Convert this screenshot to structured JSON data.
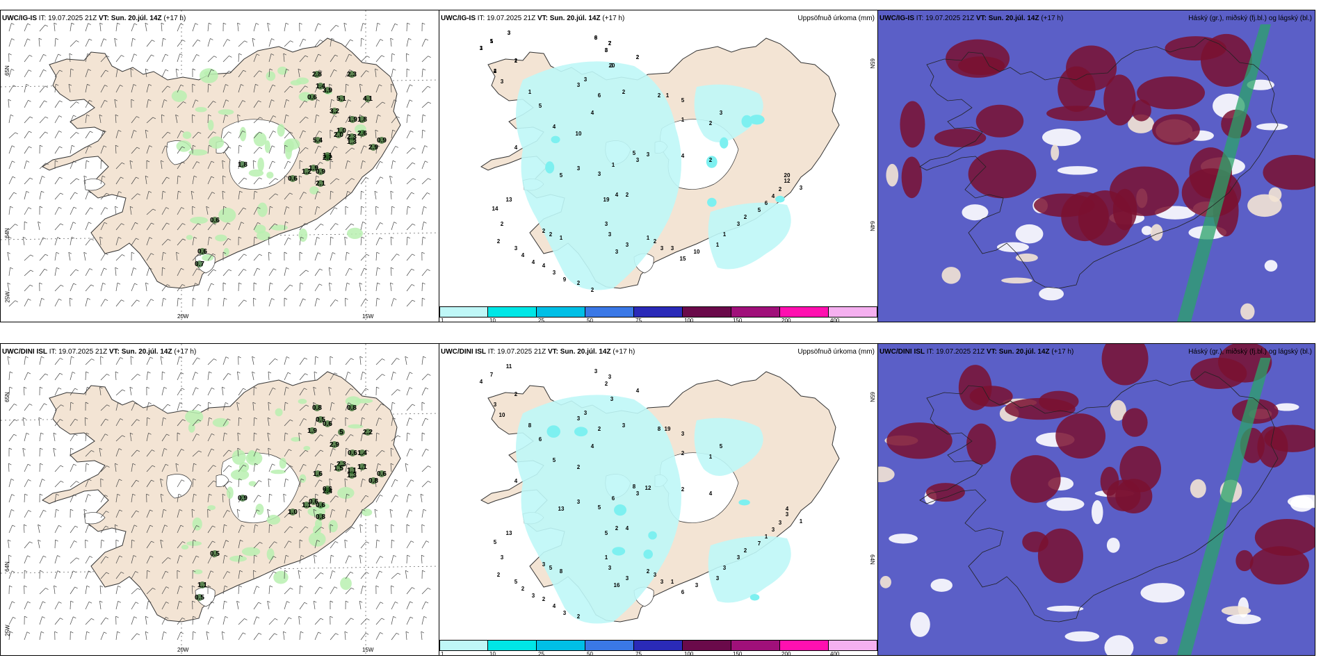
{
  "colors": {
    "land": "#f3e4d4",
    "sea": "#ffffff",
    "green_light": "#b8f0b0",
    "green_dark": "#1d5b1a",
    "cyan_light": "#bff7f7",
    "cyan": "#7df0f0",
    "cloud_low": "#5b5fc7",
    "cloud_high": "#7a1030",
    "cloud_mid_white": "#ffffff",
    "cloud_green": "#2ba36a"
  },
  "panels": {
    "top_left": {
      "model": "UWC/IG-IS",
      "it_label": "IT:",
      "it_value": "19.07.2025 21Z",
      "vt_label": "VT:",
      "vt_value": "Sun. 20.júl. 14Z",
      "lead": "(+17 h)",
      "right_title": "",
      "lat_labels": [
        "65N",
        "64N",
        "25W"
      ],
      "lon_labels": [
        "20W",
        "15W"
      ],
      "values": [
        "2.8",
        "2.3",
        "1.4",
        "3.9",
        "0.6",
        "5.1",
        "4.1",
        "3.2",
        "1.9",
        "1.8",
        "1.0",
        "2.6",
        "5.4",
        "2.0",
        "2.3",
        "1.3",
        "0.9",
        "2.9",
        "1.1",
        "2.2",
        "1.8",
        "1.9",
        "0.9",
        "1.2",
        "0.6",
        "2.1",
        "0.6",
        "0.6",
        "0.7"
      ]
    },
    "top_mid": {
      "model": "UWC/IG-IS",
      "it_label": "IT:",
      "it_value": "19.07.2025 21Z",
      "vt_label": "VT:",
      "vt_value": "Sun. 20.júl. 14Z",
      "lead": "(+17 h)",
      "right_title": "Uppsöfnuð úrkoma (mm)",
      "lat_labels": [
        "65N",
        "64N"
      ],
      "values": [
        "3",
        "1",
        "1",
        "8",
        "7",
        "8",
        "2",
        "1",
        "20",
        "4",
        "3",
        "3",
        "3",
        "1",
        "2",
        "6",
        "2",
        "1",
        "5",
        "3",
        "5",
        "4",
        "4",
        "1",
        "2",
        "10",
        "3",
        "5",
        "3",
        "4",
        "1",
        "4",
        "2",
        "3",
        "3",
        "5",
        "20",
        "12",
        "3",
        "4",
        "2",
        "19",
        "13",
        "14",
        "2",
        "3",
        "3",
        "3",
        "3",
        "2",
        "2",
        "1",
        "1",
        "2",
        "3",
        "3",
        "15",
        "10",
        "1",
        "1",
        "3",
        "2",
        "5",
        "6",
        "4",
        "2",
        "2",
        "3",
        "4",
        "4",
        "4",
        "3",
        "9",
        "2",
        "2",
        "3",
        "5",
        "3",
        "6",
        "2",
        "3",
        "2",
        "2",
        "3",
        "2"
      ]
    },
    "top_right": {
      "model": "UWC/IG-IS",
      "it_label": "IT:",
      "it_value": "19.07.2025 21Z",
      "vt_label": "VT:",
      "vt_value": "Sun. 20.júl. 14Z",
      "lead": "(+17 h)",
      "right_title": "Háský (gr.), miðský (fj.bl.) og lágský (bl.)"
    },
    "bottom_left": {
      "model": "UWC/DINI ISL",
      "it_label": "IT:",
      "it_value": "19.07.2025 21Z",
      "vt_label": "VT:",
      "vt_value": "Sun. 20.júl. 14Z",
      "lead": "(+17 h)",
      "right_title": "",
      "lat_labels": [
        "65N",
        "64N",
        "25W"
      ],
      "lon_labels": [
        "20W",
        "15W"
      ],
      "values": [
        "0.8",
        "0.8",
        "0.5",
        "0.6",
        "1.9",
        "5",
        "2.2",
        "2.9",
        "0.6",
        "1.4",
        "2.3",
        "1.1",
        "1.6",
        "1.5",
        "1.1",
        "1.3",
        "0.6",
        "0.8",
        "0.6",
        "2.4",
        "0.9",
        "0.6",
        "0.6",
        "1.1",
        "1.0",
        "0.8",
        "0.5",
        "1.1",
        "0.5"
      ]
    },
    "bottom_mid": {
      "model": "UWC/DINI ISL",
      "it_label": "IT:",
      "it_value": "19.07.2025 21Z",
      "vt_label": "VT:",
      "vt_value": "Sun. 20.júl. 14Z",
      "lead": "(+17 h)",
      "right_title": "Uppsöfnuð úrkoma (mm)",
      "lat_labels": [
        "65N",
        "64N"
      ],
      "values": [
        "11",
        "7",
        "4",
        "3",
        "3",
        "2",
        "4",
        "2",
        "3",
        "3",
        "3",
        "10",
        "3",
        "8",
        "3",
        "2",
        "8",
        "19",
        "3",
        "5",
        "6",
        "4",
        "5",
        "2",
        "1",
        "2",
        "12",
        "8",
        "3",
        "4",
        "6",
        "2",
        "4",
        "3",
        "5",
        "13",
        "4",
        "3",
        "1",
        "2",
        "4",
        "5",
        "13",
        "5",
        "3",
        "1",
        "3",
        "3",
        "16",
        "3",
        "5",
        "8",
        "2",
        "3",
        "3",
        "1",
        "6",
        "3",
        "3",
        "3",
        "3",
        "2",
        "7",
        "1",
        "3",
        "3",
        "2",
        "5",
        "2",
        "3",
        "2",
        "4",
        "3",
        "2"
      ]
    },
    "bottom_right": {
      "model": "UWC/DINI ISL",
      "it_label": "IT:",
      "it_value": "19.07.2025 21Z",
      "vt_label": "VT:",
      "vt_value": "Sun. 20.júl. 14Z",
      "lead": "(+17 h)",
      "right_title": "Háský (gr.), miðský (fj.bl.) og lágský (bl.)"
    }
  },
  "colorbar": {
    "colors": [
      "#bff7f7",
      "#00e6e6",
      "#00bfe6",
      "#3a78e6",
      "#2a2ab8",
      "#6a0a4a",
      "#a0107a",
      "#ff10b0",
      "#f5b0f0"
    ],
    "ticks": [
      "1",
      "10",
      "25",
      "50",
      "75",
      "100",
      "150",
      "200",
      "400"
    ]
  }
}
